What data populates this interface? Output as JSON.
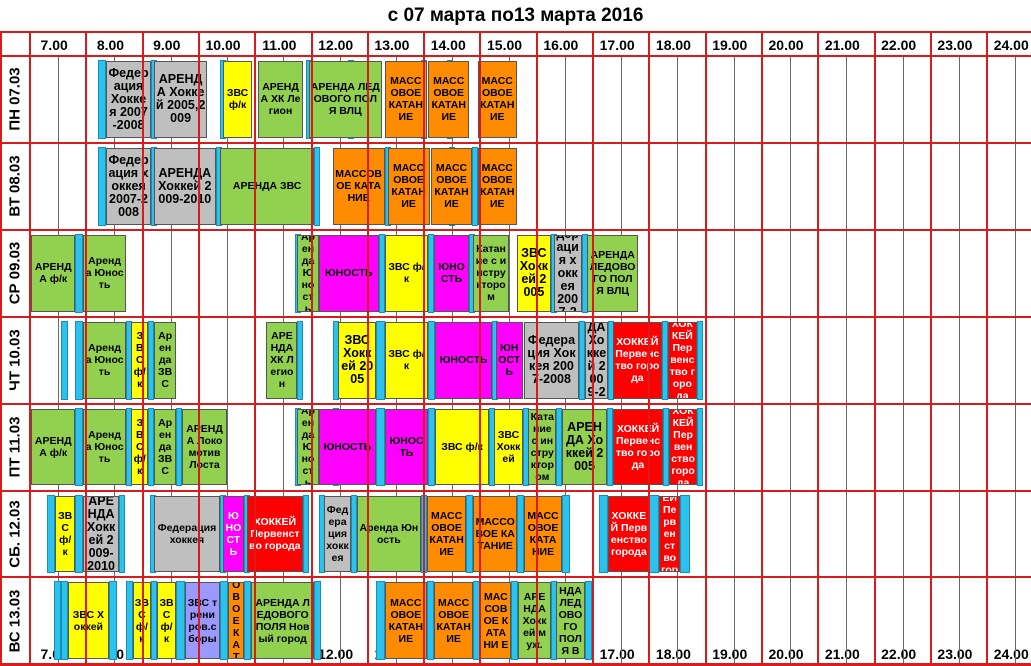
{
  "title": "с 07 марта по13 марта 2016",
  "hours": [
    "7.00",
    "8.00",
    "9.00",
    "10.00",
    "11.00",
    "12.00",
    "13.00",
    "14.00",
    "15.00",
    "16.00",
    "17.00",
    "18.00",
    "19.00",
    "20.00",
    "21.00",
    "22.00",
    "23.00",
    "24.00"
  ],
  "colors": {
    "green": "#92d050",
    "gray": "#bfbfbf",
    "yellow": "#ffff00",
    "orange": "#ff8c00",
    "magenta": "#ff00ff",
    "red": "#ff0000",
    "purple": "#9999ff",
    "blue": "#2bc3ee",
    "grid": "#d81c1c"
  },
  "days": [
    {
      "label": "ПН 07.03",
      "gaps": [
        [
          9.4,
          9.7
        ],
        [
          11.3,
          11.4
        ],
        [
          13.75,
          13.85
        ],
        [
          16.8,
          16.9
        ],
        [
          18.3,
          18.4
        ],
        [
          20.9,
          20.95
        ],
        [
          21.8,
          21.95
        ]
      ],
      "events": [
        {
          "s": 9.7,
          "e": 11.3,
          "text": "Федерация Хоккея 2007-2008",
          "c": "gray",
          "big": true
        },
        {
          "s": 11.4,
          "e": 13.3,
          "text": "АРЕНДА Хоккей 2005,2009",
          "c": "gray",
          "big": true
        },
        {
          "s": 13.85,
          "e": 14.9,
          "text": "ЗВС ф/к",
          "c": "yellow"
        },
        {
          "s": 15.1,
          "e": 16.7,
          "text": "АРЕНДА ХК Легион",
          "c": "green"
        },
        {
          "s": 16.9,
          "e": 19.5,
          "text": "АРЕНДА ЛЕДОВОГО ПОЛЯ ВЛЦ",
          "c": "green"
        },
        {
          "s": 19.6,
          "e": 21.1,
          "text": "МАССОВОЕ КАТАНИЕ",
          "c": "orange"
        },
        {
          "s": 21.15,
          "e": 22.6,
          "text": "МАССОВОЕ КАТАНИЕ",
          "c": "orange"
        },
        {
          "s": 22.9,
          "e": 24.3,
          "text": "МАССОВОЕ КАТАНИЕ",
          "c": "orange"
        }
      ]
    },
    {
      "label": "ВТ 08.03",
      "gaps": [
        [
          9.4,
          9.7
        ],
        [
          11.3,
          11.4
        ],
        [
          13.6,
          13.75
        ],
        [
          17.1,
          17.2
        ],
        [
          19.6,
          19.7
        ],
        [
          21.9,
          22.05
        ],
        [
          22.7,
          22.9
        ]
      ],
      "events": [
        {
          "s": 9.7,
          "e": 11.3,
          "text": "Федерация хоккея 2007-2008",
          "c": "gray",
          "big": true
        },
        {
          "s": 11.4,
          "e": 13.6,
          "text": "АРЕНДА Хоккей 2009-2010",
          "c": "gray",
          "big": true
        },
        {
          "s": 13.75,
          "e": 17.1,
          "text": "АРЕНДА ЗВС",
          "c": "green"
        },
        {
          "s": 17.75,
          "e": 19.6,
          "text": "МАССОВОЕ КАТАНИЕ",
          "c": "orange"
        },
        {
          "s": 19.7,
          "e": 21.2,
          "text": "МАССОВОЕ КАТАНИЕ",
          "c": "orange"
        },
        {
          "s": 21.25,
          "e": 22.7,
          "text": "МАССОВОЕ КАТАНИЕ",
          "c": "orange"
        },
        {
          "s": 22.9,
          "e": 24.3,
          "text": "МАССОВОЕ КАТАНИЕ",
          "c": "orange"
        }
      ]
    },
    {
      "label": "СР 09.03",
      "gaps": [
        [
          8.6,
          8.9
        ],
        [
          16.4,
          16.5
        ],
        [
          19.4,
          19.6
        ],
        [
          21.15,
          21.35
        ],
        [
          22.6,
          22.75
        ],
        [
          25.5,
          25.6
        ],
        [
          26.6,
          26.8
        ]
      ],
      "events": [
        {
          "s": 7.05,
          "e": 8.6,
          "text": "АРЕНДА ф/к",
          "c": "green"
        },
        {
          "s": 8.9,
          "e": 10.4,
          "text": "Аренда Юность",
          "c": "green"
        },
        {
          "s": 16.5,
          "e": 17.25,
          "text": "Аренда Юность",
          "c": "green"
        },
        {
          "s": 17.25,
          "e": 19.4,
          "text": "ЮНОСТЬ",
          "c": "magenta"
        },
        {
          "s": 19.6,
          "e": 21.15,
          "text": "ЗВС ф/к",
          "c": "yellow"
        },
        {
          "s": 21.35,
          "e": 22.6,
          "text": "ЮНОСТЬ",
          "c": "magenta"
        },
        {
          "s": 22.75,
          "e": 24.0,
          "text": "Катание с инструктором",
          "c": "green"
        },
        {
          "s": 24.3,
          "e": 25.5,
          "text": "ЗВС Хоккей 2005",
          "c": "yellow",
          "big": true
        },
        {
          "s": 25.6,
          "e": 26.6,
          "text": "Федерация хоккея 2007-2008",
          "c": "gray",
          "big": true
        },
        {
          "s": 26.8,
          "e": 28.6,
          "text": "АРЕНДА ЛЕДОВОГО ПОЛЯ ВЛЦ",
          "c": "green"
        }
      ]
    },
    {
      "label": "ЧТ 10.03",
      "gaps": [
        [
          8.1,
          8.35
        ],
        [
          8.6,
          8.9
        ],
        [
          10.4,
          10.6
        ],
        [
          11.2,
          11.4
        ],
        [
          16.5,
          16.7
        ],
        [
          17.75,
          17.95
        ],
        [
          19.3,
          19.6
        ],
        [
          21.15,
          21.4
        ],
        [
          23.4,
          23.55
        ],
        [
          26.5,
          26.7
        ],
        [
          27.55,
          27.7
        ],
        [
          29.45,
          29.65
        ],
        [
          30.7,
          30.85
        ]
      ],
      "events": [
        {
          "s": 8.9,
          "e": 10.4,
          "text": "Аренда Юность",
          "c": "green"
        },
        {
          "s": 10.6,
          "e": 11.2,
          "text": "ЗВС ф/к",
          "c": "yellow"
        },
        {
          "s": 11.4,
          "e": 12.2,
          "text": "Аренда ЗВС",
          "c": "green"
        },
        {
          "s": 15.4,
          "e": 16.5,
          "text": "АРЕНДА ХК Легион",
          "c": "green"
        },
        {
          "s": 17.95,
          "e": 19.3,
          "text": "ЗВС Хоккей 2005",
          "c": "yellow",
          "big": true
        },
        {
          "s": 19.6,
          "e": 21.15,
          "text": "ЗВС ф/к",
          "c": "yellow"
        },
        {
          "s": 21.4,
          "e": 23.4,
          "text": "ЮНОСТЬ",
          "c": "magenta"
        },
        {
          "s": 23.55,
          "e": 24.5,
          "text": "ЮНОСТЬ",
          "c": "magenta"
        },
        {
          "s": 24.55,
          "e": 26.5,
          "text": "Федерация Хоккея 2007-2008",
          "c": "gray",
          "big": true
        },
        {
          "s": 26.7,
          "e": 27.55,
          "text": "АРЕНДА Хоккей 2009-2010",
          "c": "gray",
          "big": true
        },
        {
          "s": 27.7,
          "e": 29.45,
          "text": "ХОККЕЙ Первенство города",
          "c": "red",
          "wt": true
        },
        {
          "s": 29.65,
          "e": 30.7,
          "text": "ХОККЕЙ Первенство города",
          "c": "red",
          "wt": true
        }
      ]
    },
    {
      "label": "ПТ 11.03",
      "gaps": [
        [
          8.6,
          8.9
        ],
        [
          10.4,
          10.6
        ],
        [
          11.2,
          11.4
        ],
        [
          12.2,
          12.4
        ],
        [
          16.4,
          16.5
        ],
        [
          17.75,
          17.95
        ],
        [
          19.3,
          19.6
        ],
        [
          21.15,
          21.4
        ],
        [
          23.3,
          23.5
        ],
        [
          24.5,
          24.7
        ],
        [
          25.7,
          25.9
        ],
        [
          27.5,
          27.7
        ],
        [
          29.5,
          29.7
        ],
        [
          30.7,
          30.85
        ]
      ],
      "events": [
        {
          "s": 7.05,
          "e": 8.6,
          "text": "АРЕНДА ф/к",
          "c": "green"
        },
        {
          "s": 8.9,
          "e": 10.4,
          "text": "Аренда Юность",
          "c": "green"
        },
        {
          "s": 10.6,
          "e": 11.2,
          "text": "ЗВС ф/к",
          "c": "yellow"
        },
        {
          "s": 11.4,
          "e": 12.2,
          "text": "Аренда ЗВС",
          "c": "green"
        },
        {
          "s": 12.4,
          "e": 14.0,
          "text": "АРЕНДА Локомотив Лоста",
          "c": "green"
        },
        {
          "s": 16.5,
          "e": 17.25,
          "text": "Аренда Юность",
          "c": "green"
        },
        {
          "s": 17.25,
          "e": 19.3,
          "text": "ЮНОСТЬ",
          "c": "magenta"
        },
        {
          "s": 19.6,
          "e": 21.15,
          "text": "ЮНОСТЬ",
          "c": "magenta"
        },
        {
          "s": 21.4,
          "e": 23.3,
          "text": "ЗВС ф/к",
          "c": "yellow"
        },
        {
          "s": 23.5,
          "e": 24.5,
          "text": "ЗВС Хоккей",
          "c": "yellow"
        },
        {
          "s": 24.7,
          "e": 25.7,
          "text": "Катание с инструктором",
          "c": "green"
        },
        {
          "s": 25.9,
          "e": 27.5,
          "text": "АРЕНДА Хоккей 2005",
          "c": "green",
          "big": true
        },
        {
          "s": 27.7,
          "e": 29.5,
          "text": "ХОККЕЙ Первенство города",
          "c": "red",
          "wt": true
        },
        {
          "s": 29.7,
          "e": 30.7,
          "text": "ХОККЕЙ Первенство города",
          "c": "red",
          "wt": true
        }
      ]
    },
    {
      "label": "СБ. 12.03",
      "gaps": [
        [
          7.6,
          7.9
        ],
        [
          8.6,
          8.9
        ],
        [
          10.15,
          10.35
        ],
        [
          11.25,
          11.4
        ],
        [
          13.75,
          13.85
        ],
        [
          14.6,
          14.7
        ],
        [
          16.7,
          16.9
        ],
        [
          17.25,
          17.45
        ],
        [
          18.4,
          18.6
        ],
        [
          20.9,
          21.1
        ],
        [
          22.5,
          22.75
        ],
        [
          24.3,
          24.55
        ],
        [
          25.9,
          26.2
        ],
        [
          27.2,
          27.55
        ],
        [
          29.0,
          29.35
        ],
        [
          30.1,
          30.45
        ]
      ],
      "events": [
        {
          "s": 7.9,
          "e": 8.6,
          "text": "ЗВС ф/к",
          "c": "yellow"
        },
        {
          "s": 8.9,
          "e": 10.15,
          "text": "АРЕНДА Хоккей 2009-2010",
          "c": "gray",
          "big": true
        },
        {
          "s": 11.4,
          "e": 13.75,
          "text": "Федерация хоккея",
          "c": "gray"
        },
        {
          "s": 13.85,
          "e": 14.6,
          "text": "ЮНОСТЬ",
          "c": "magenta",
          "wt": true
        },
        {
          "s": 14.7,
          "e": 16.7,
          "text": "ХОККЕЙ Первенство города",
          "c": "red",
          "wt": true
        },
        {
          "s": 17.45,
          "e": 18.4,
          "text": "Федерация хоккея",
          "c": "gray"
        },
        {
          "s": 18.6,
          "e": 20.9,
          "text": "Аренда Юность",
          "c": "green"
        },
        {
          "s": 21.1,
          "e": 22.5,
          "text": "МАССОВОЕ КАТАНИЕ",
          "c": "orange"
        },
        {
          "s": 22.75,
          "e": 24.3,
          "text": "МАССОВОЕ КАТАНИЕ",
          "c": "orange"
        },
        {
          "s": 24.55,
          "e": 25.9,
          "text": "МАССОВОЕ КАТАНИЕ",
          "c": "orange"
        },
        {
          "s": 27.55,
          "e": 29.0,
          "text": "ХОККЕЙ Первенство города",
          "c": "red",
          "wt": true
        },
        {
          "s": 29.35,
          "e": 30.1,
          "text": "ХОККЕЙ Первенство города",
          "c": "red",
          "wt": true
        }
      ]
    },
    {
      "label": "ВС 13.03",
      "gaps": [
        [
          7.85,
          8.1
        ],
        [
          8.1,
          8.35
        ],
        [
          9.8,
          10.1
        ],
        [
          10.4,
          10.65
        ],
        [
          11.3,
          11.5
        ],
        [
          12.2,
          12.5
        ],
        [
          13.75,
          14.05
        ],
        [
          14.6,
          14.85
        ],
        [
          17.1,
          17.35
        ],
        [
          19.3,
          19.6
        ],
        [
          21.1,
          21.35
        ],
        [
          22.75,
          23.0
        ],
        [
          24.1,
          24.35
        ],
        [
          25.5,
          25.7
        ],
        [
          26.7,
          26.95
        ]
      ],
      "events": [
        {
          "s": 8.35,
          "e": 9.8,
          "text": "ЗВС Хоккей",
          "c": "yellow"
        },
        {
          "s": 10.65,
          "e": 11.3,
          "text": "ЗВС ф/к",
          "c": "yellow"
        },
        {
          "s": 11.5,
          "e": 12.2,
          "text": "ЗВС ф/к",
          "c": "yellow"
        },
        {
          "s": 12.5,
          "e": 13.75,
          "text": "ЗВС трениров.сборы",
          "c": "purple"
        },
        {
          "s": 14.05,
          "e": 14.6,
          "text": "МАССОВОЕ КАТАНИЕ",
          "c": "orange"
        },
        {
          "s": 14.85,
          "e": 17.1,
          "text": "АРЕНДА ЛЕДОВОГО ПОЛЯ Новый город",
          "c": "green"
        },
        {
          "s": 19.6,
          "e": 21.1,
          "text": "МАССОВОЕ КАТАНИЕ",
          "c": "orange"
        },
        {
          "s": 21.35,
          "e": 22.75,
          "text": "МАССОВОЕ КАТАНИЕ",
          "c": "orange"
        },
        {
          "s": 23.0,
          "e": 24.1,
          "text": "МАССОВОЕ КАТАНИ Е",
          "c": "orange"
        },
        {
          "s": 24.35,
          "e": 25.5,
          "text": "АРЕНДА Хоккей муж.",
          "c": "green"
        },
        {
          "s": 25.7,
          "e": 26.7,
          "text": "АРЕНДА ЛЕДОВОГО ПОЛЯ ВЛЦ",
          "c": "green"
        }
      ]
    }
  ]
}
